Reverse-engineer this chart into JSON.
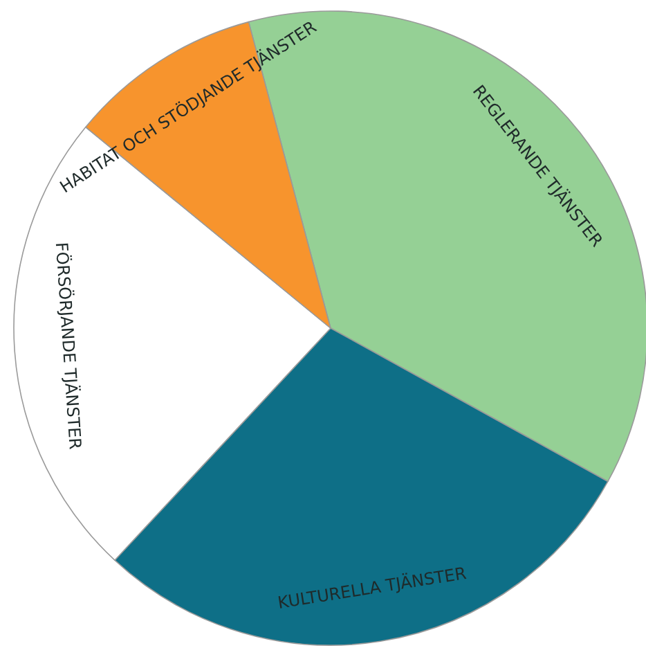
{
  "chart_data": {
    "type": "pie",
    "categories": [
      "REGLERANDE TJÄNSTER",
      "KULTURELLA TJÄNSTER",
      "FÖRSÖRJANDE TJÄNSTER",
      "HABITAT OCH STÖDJANDE TJÄNSTER"
    ],
    "values": [
      37.2,
      28.9,
      24.0,
      9.9
    ],
    "colors": [
      "#95d095",
      "#0e6f87",
      "#ffffff",
      "#f7942d"
    ],
    "legend": false
  }
}
